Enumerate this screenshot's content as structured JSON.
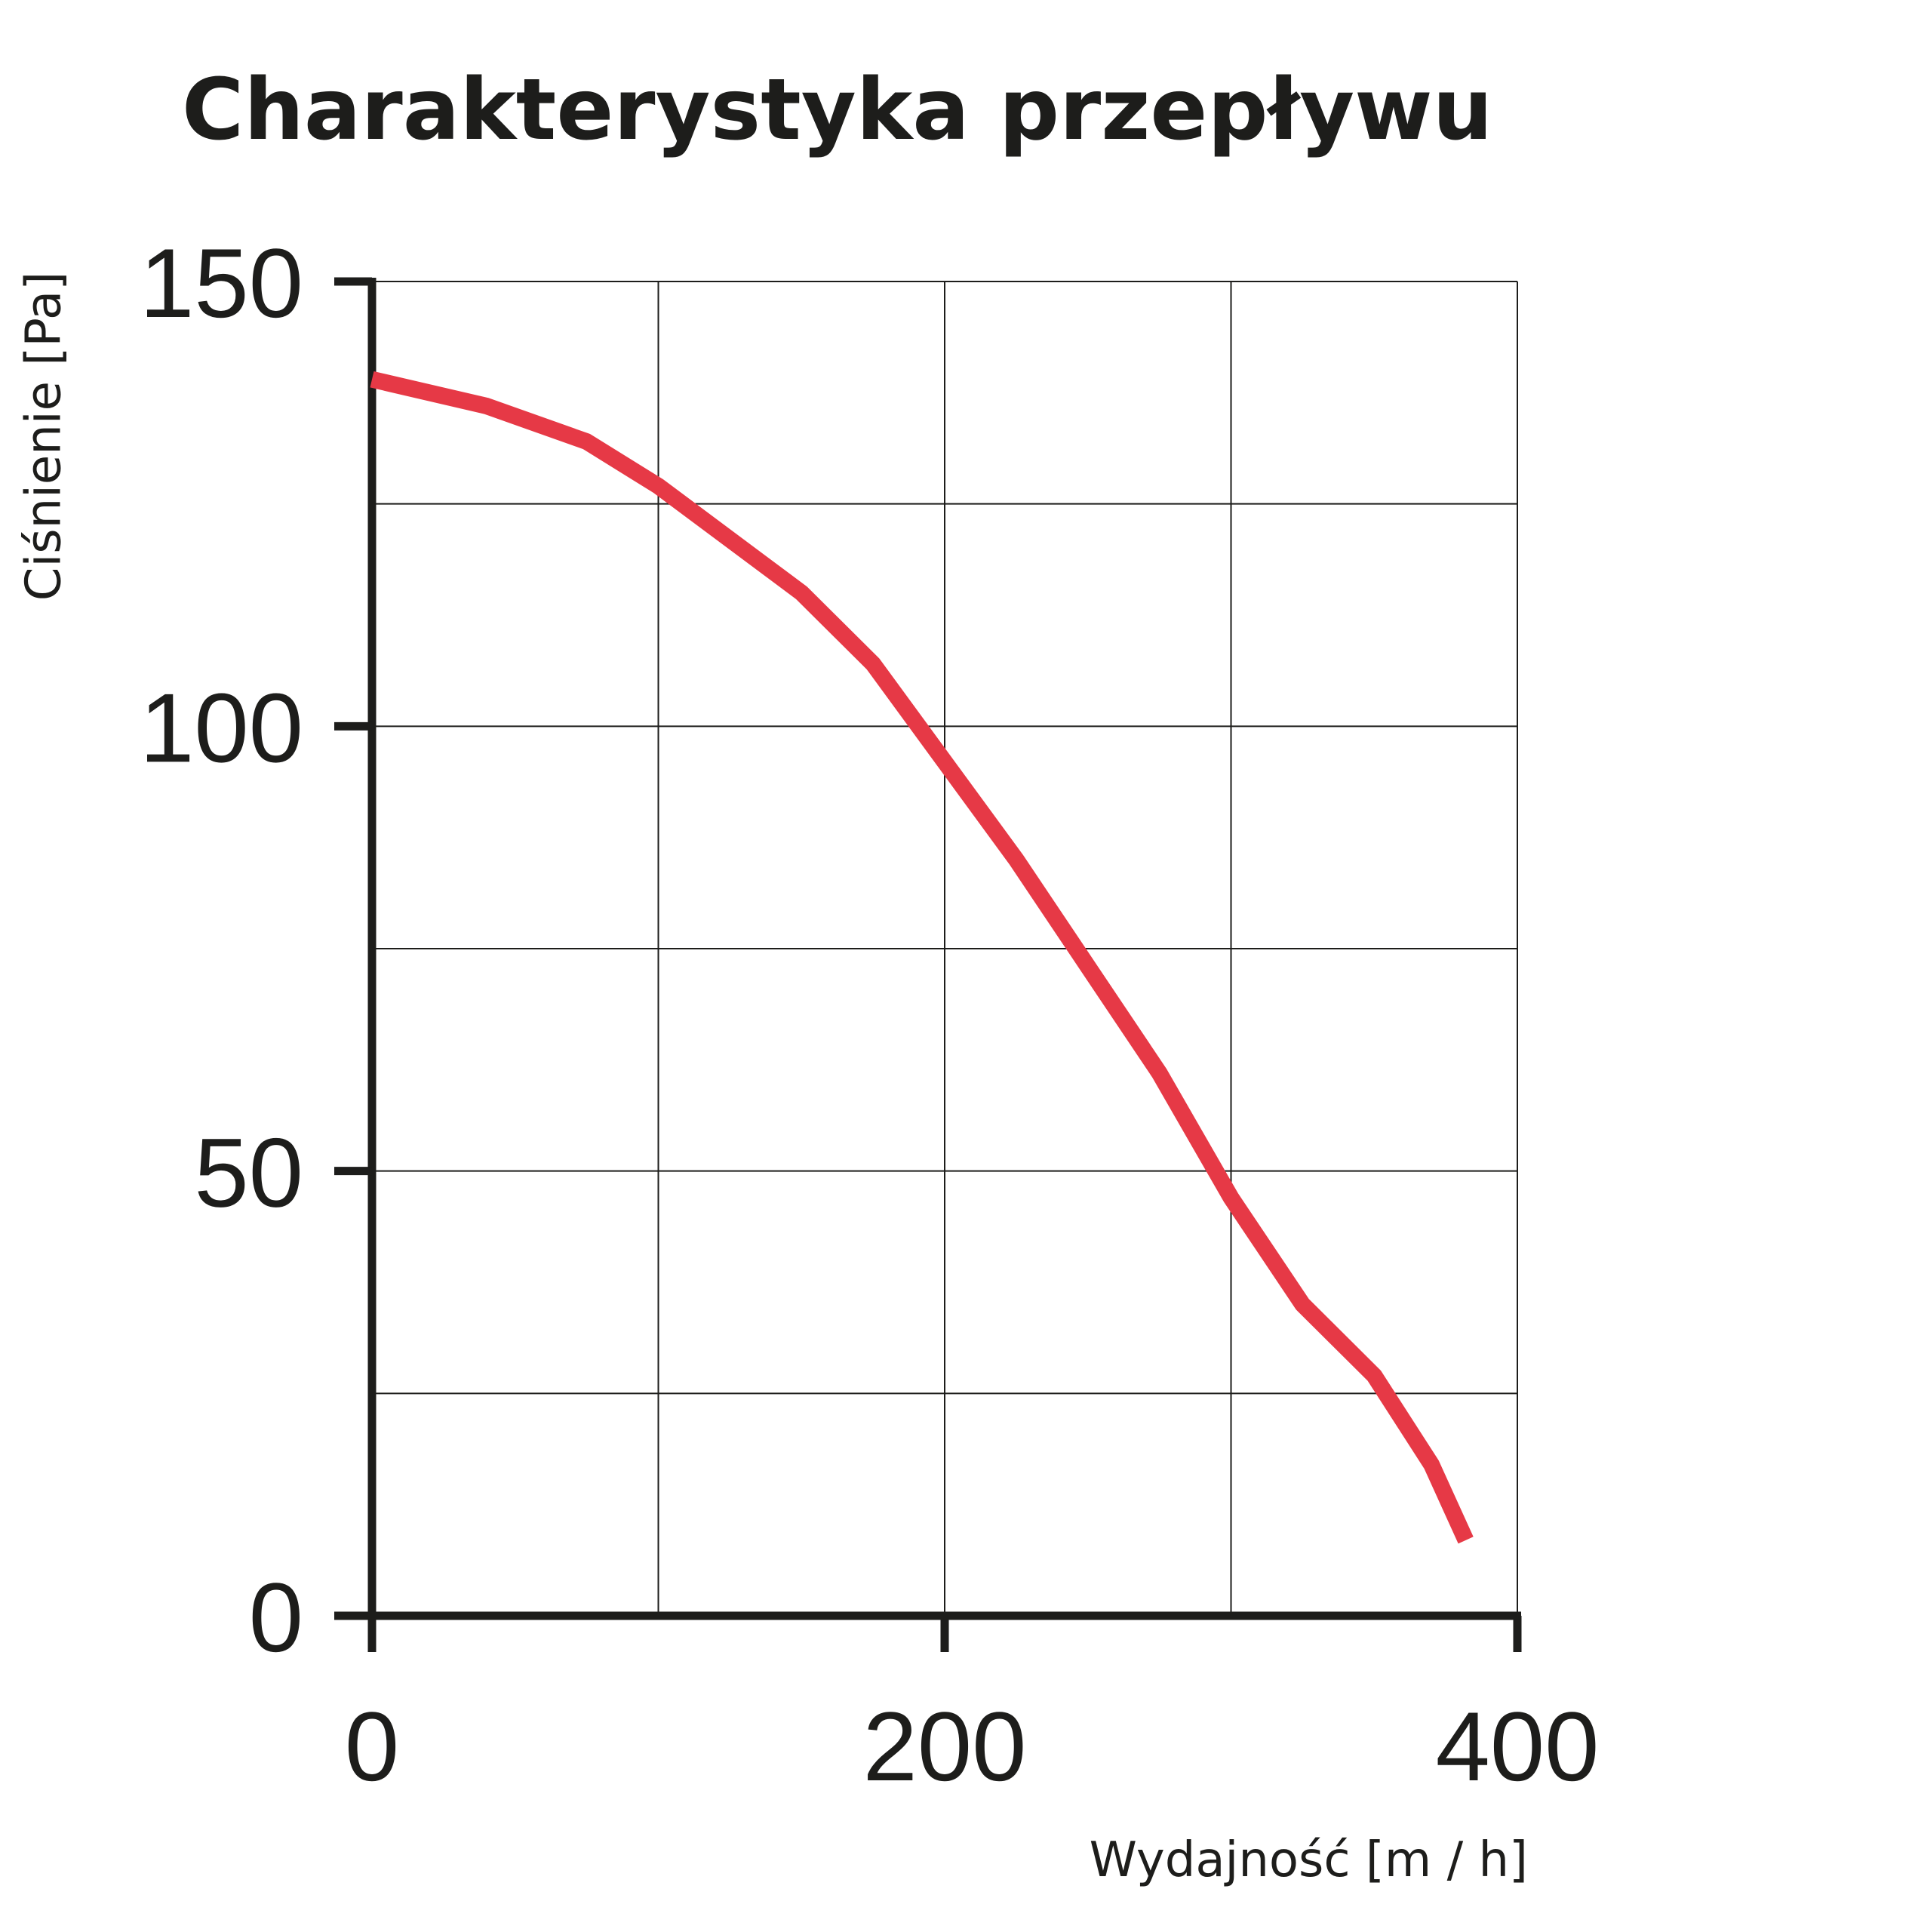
{
  "chart_data": {
    "type": "line",
    "title": "Charakterystyka przepływu",
    "x_label": "Wydajność [m / h]",
    "y_label": "Ciśnienie [Pa]",
    "x": [
      0,
      40,
      75,
      100,
      125,
      150,
      175,
      200,
      225,
      250,
      275,
      300,
      325,
      350,
      370,
      382
    ],
    "series": [
      {
        "color": "#e63946",
        "values": [
          139,
          136,
          132,
          127,
          121,
          115,
          107,
          96,
          85,
          73,
          61,
          47,
          35,
          27,
          17,
          8.5
        ]
      }
    ],
    "xlim": [
      0,
      400
    ],
    "ylim": [
      0,
      150
    ],
    "xticks": [
      0,
      200,
      400
    ],
    "yticks": [
      0,
      50,
      100,
      150
    ],
    "xgrid": [
      0,
      100,
      200,
      300,
      400
    ],
    "ygrid": [
      0,
      25,
      50,
      75,
      100,
      125,
      150
    ],
    "grid": true
  }
}
